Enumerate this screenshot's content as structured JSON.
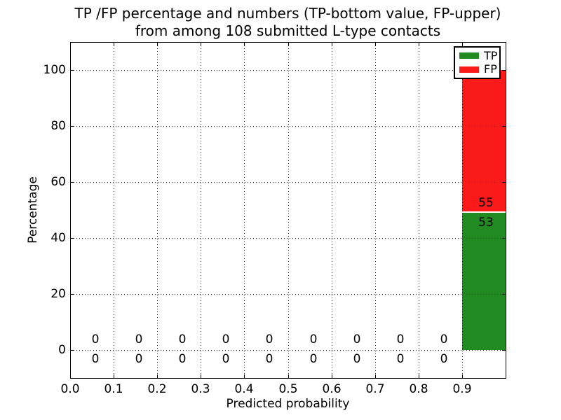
{
  "figure": {
    "title_line1": "TP /FP percentage and numbers (TP-bottom value, FP-upper)",
    "title_line2": "from among 108 submitted L-type contacts",
    "xlabel": "Predicted probability",
    "ylabel": "Percentage"
  },
  "legend": {
    "items": [
      {
        "label": "TP",
        "color": "#218a21"
      },
      {
        "label": "FP",
        "color": "#fa1a1a"
      }
    ]
  },
  "chart_data": {
    "type": "bar",
    "stacked": true,
    "title": "TP /FP percentage and numbers (TP-bottom value, FP-upper) from among 108 submitted L-type contacts",
    "xlabel": "Predicted probability",
    "ylabel": "Percentage",
    "xlim": [
      0.0,
      1.0
    ],
    "ylim": [
      -10,
      110
    ],
    "grid": true,
    "grid_style": "dotted",
    "legend_position": "upper right",
    "total_submitted": 108,
    "bin_width": 0.1,
    "bin_centers": [
      0.05,
      0.15,
      0.25,
      0.35,
      0.45,
      0.55,
      0.65,
      0.75,
      0.85,
      0.95
    ],
    "x_tick_labels": [
      "0.0",
      "0.1",
      "0.2",
      "0.3",
      "0.4",
      "0.5",
      "0.6",
      "0.7",
      "0.8",
      "0.9"
    ],
    "y_ticks": [
      0,
      20,
      40,
      60,
      80,
      100
    ],
    "series": [
      {
        "name": "TP",
        "color": "#218a21",
        "counts": [
          0,
          0,
          0,
          0,
          0,
          0,
          0,
          0,
          0,
          53
        ],
        "percent_last_bin": 49.07
      },
      {
        "name": "FP",
        "color": "#fa1a1a",
        "counts": [
          0,
          0,
          0,
          0,
          0,
          0,
          0,
          0,
          0,
          55
        ],
        "percent_last_bin": 50.93
      }
    ],
    "bar_label_color": "#000000"
  }
}
